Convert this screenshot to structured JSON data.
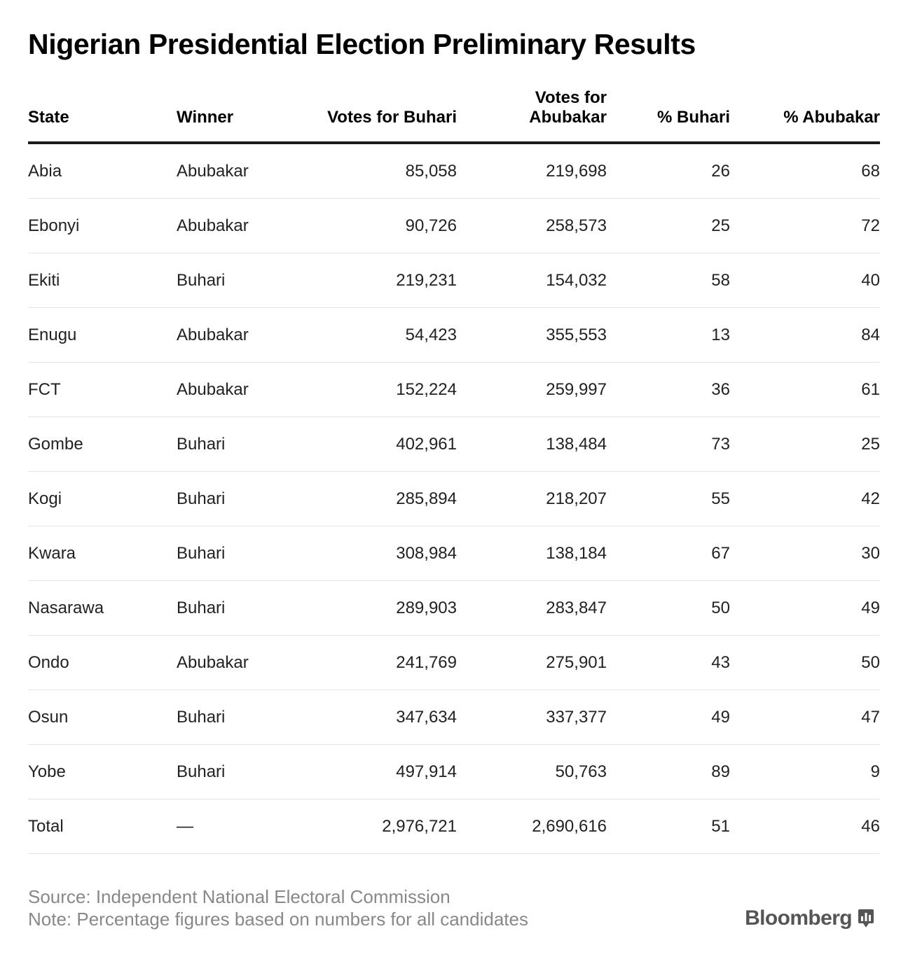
{
  "colors": {
    "text": "#000000",
    "muted": "#888888",
    "rule_heavy": "#1a1a1a",
    "rule_light": "#e3e3e3",
    "logo": "#555555"
  },
  "brand": {
    "name": "Bloomberg",
    "icon": "bar-chart-icon"
  },
  "chart_data": {
    "type": "table",
    "title": "Nigerian Presidential Election Preliminary Results",
    "columns": [
      "State",
      "Winner",
      "Votes for Buhari",
      "Votes for Abubakar",
      "% Buhari",
      "% Abubakar"
    ],
    "rows": [
      [
        "Abia",
        "Abubakar",
        "85,058",
        "219,698",
        "26",
        "68"
      ],
      [
        "Ebonyi",
        "Abubakar",
        "90,726",
        "258,573",
        "25",
        "72"
      ],
      [
        "Ekiti",
        "Buhari",
        "219,231",
        "154,032",
        "58",
        "40"
      ],
      [
        "Enugu",
        "Abubakar",
        "54,423",
        "355,553",
        "13",
        "84"
      ],
      [
        "FCT",
        "Abubakar",
        "152,224",
        "259,997",
        "36",
        "61"
      ],
      [
        "Gombe",
        "Buhari",
        "402,961",
        "138,484",
        "73",
        "25"
      ],
      [
        "Kogi",
        "Buhari",
        "285,894",
        "218,207",
        "55",
        "42"
      ],
      [
        "Kwara",
        "Buhari",
        "308,984",
        "138,184",
        "67",
        "30"
      ],
      [
        "Nasarawa",
        "Buhari",
        "289,903",
        "283,847",
        "50",
        "49"
      ],
      [
        "Ondo",
        "Abubakar",
        "241,769",
        "275,901",
        "43",
        "50"
      ],
      [
        "Osun",
        "Buhari",
        "347,634",
        "337,377",
        "49",
        "47"
      ],
      [
        "Yobe",
        "Buhari",
        "497,914",
        "50,763",
        "89",
        "9"
      ],
      [
        "Total",
        "—",
        "2,976,721",
        "2,690,616",
        "51",
        "46"
      ]
    ],
    "source": "Source: Independent National Electoral Commission",
    "note": "Note: Percentage figures based on numbers for all candidates"
  }
}
